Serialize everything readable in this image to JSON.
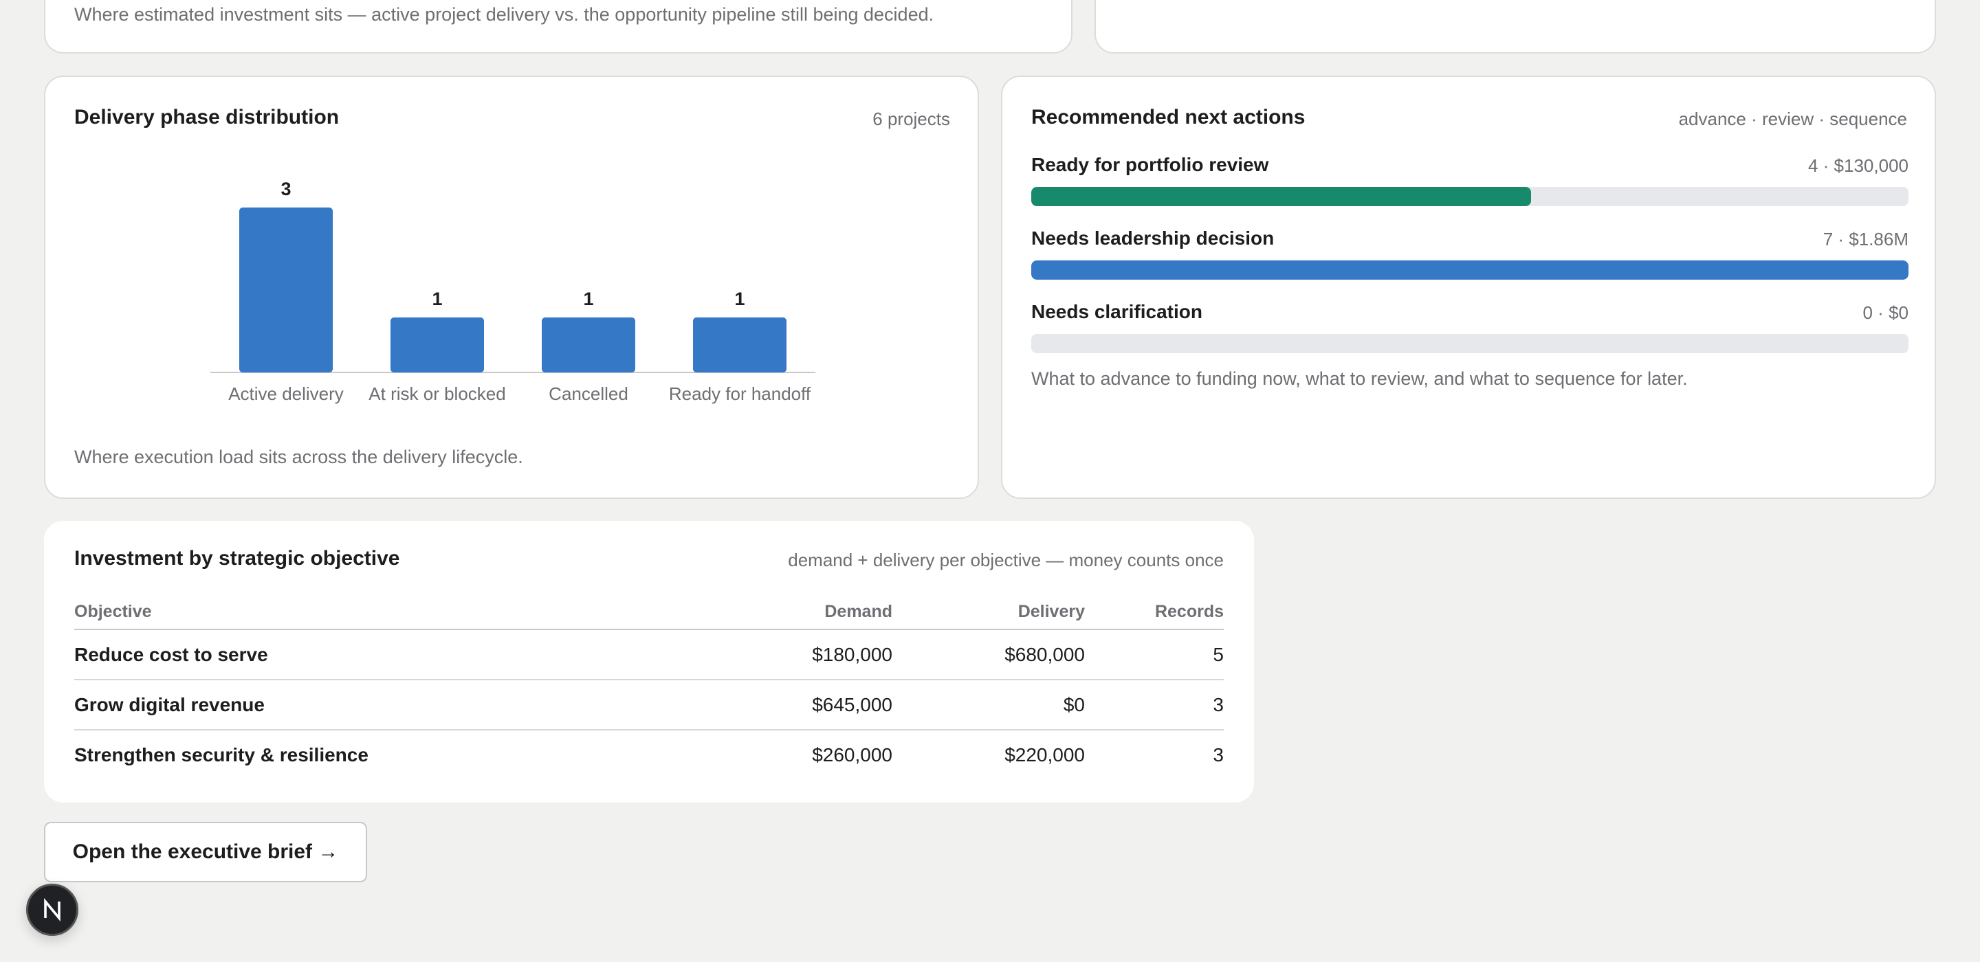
{
  "pipeline_card": {
    "note": "Where estimated investment sits — active project delivery vs. the opportunity pipeline still being decided."
  },
  "phase_card": {
    "title": "Delivery phase distribution",
    "count": "6 projects",
    "note": "Where execution load sits across the delivery lifecycle.",
    "chart_data": {
      "type": "bar",
      "categories": [
        "Active delivery",
        "At risk or blocked",
        "Cancelled",
        "Ready for handoff"
      ],
      "values": [
        3,
        1,
        1,
        1
      ],
      "title": "",
      "xlabel": "",
      "ylabel": "",
      "ylim": [
        0,
        3
      ],
      "grid": false,
      "color": "#3478c6"
    }
  },
  "actions_card": {
    "title": "Recommended next actions",
    "meta": "advance · review · sequence",
    "items": [
      {
        "label": "Ready for portfolio review",
        "value": "4 · $130,000",
        "fraction": 0.57,
        "color": "#168a6b"
      },
      {
        "label": "Needs leadership decision",
        "value": "7 · $1.86M",
        "fraction": 1.0,
        "color": "#3478c6"
      },
      {
        "label": "Needs clarification",
        "value": "0 · $0",
        "fraction": 0.0,
        "color": "#3478c6"
      }
    ],
    "note": "What to advance to funding now, what to review, and what to sequence for later."
  },
  "objectives_card": {
    "title": "Investment by strategic objective",
    "meta": "demand + delivery per objective — money counts once",
    "headers": {
      "objective": "Objective",
      "demand": "Demand",
      "delivery": "Delivery",
      "records": "Records"
    },
    "rows": [
      {
        "objective": "Reduce cost to serve",
        "demand": "$180,000",
        "delivery": "$680,000",
        "records": "5"
      },
      {
        "objective": "Grow digital revenue",
        "demand": "$645,000",
        "delivery": "$0",
        "records": "3"
      },
      {
        "objective": "Strengthen security & resilience",
        "demand": "$260,000",
        "delivery": "$220,000",
        "records": "3"
      }
    ]
  },
  "brief_button": {
    "label": "Open the executive brief →"
  },
  "badge": {
    "icon": "n-logo-icon"
  }
}
